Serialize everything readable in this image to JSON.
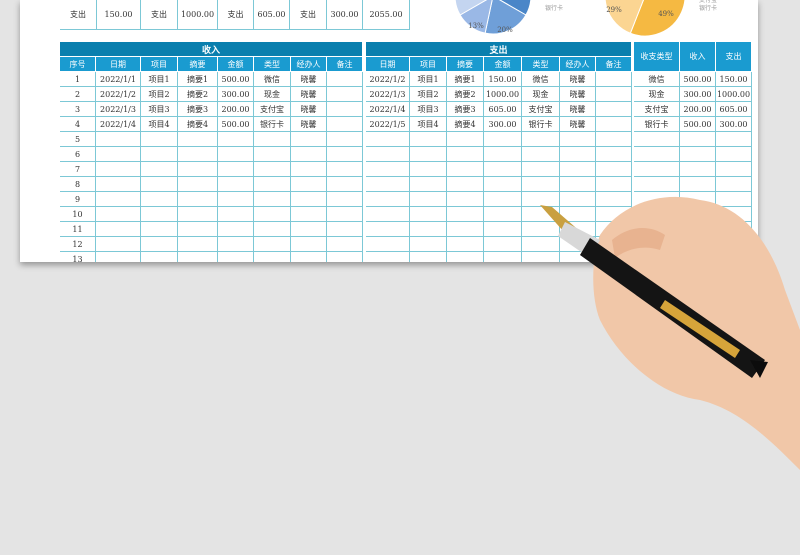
{
  "summary_row": [
    "支出",
    "150.00",
    "支出",
    "1000.00",
    "支出",
    "605.00",
    "支出",
    "300.00",
    "2055.00"
  ],
  "charts": {
    "income_pie": {
      "legend_visible": "银行卡",
      "labels_visible": [
        "13%",
        "20%"
      ],
      "colors": [
        "#4a86c8",
        "#6f9fd8",
        "#9ab8e6",
        "#c4d5f0"
      ]
    },
    "expense_pie": {
      "legend_visible": [
        "支付宝",
        "银行卡"
      ],
      "labels_visible": [
        "29%",
        "49%"
      ],
      "colors": [
        "#f0c060",
        "#f5b942",
        "#fbd592",
        "#fde3b8"
      ]
    }
  },
  "income": {
    "title": "收入",
    "headers": [
      "序号",
      "日期",
      "项目",
      "摘要",
      "金额",
      "类型",
      "经办人",
      "备注"
    ],
    "rows": [
      [
        "1",
        "2022/1/1",
        "项目1",
        "摘要1",
        "500.00",
        "微信",
        "晓馨",
        ""
      ],
      [
        "2",
        "2022/1/2",
        "项目2",
        "摘要2",
        "300.00",
        "现金",
        "晓馨",
        ""
      ],
      [
        "3",
        "2022/1/3",
        "项目3",
        "摘要3",
        "200.00",
        "支付宝",
        "晓馨",
        ""
      ],
      [
        "4",
        "2022/1/4",
        "项目4",
        "摘要4",
        "500.00",
        "银行卡",
        "晓馨",
        ""
      ]
    ],
    "row_numbers": [
      "5",
      "6",
      "7",
      "8",
      "9",
      "10",
      "11",
      "12",
      "13"
    ]
  },
  "expense": {
    "title": "支出",
    "headers": [
      "日期",
      "项目",
      "摘要",
      "金额",
      "类型",
      "经办人",
      "备注"
    ],
    "rows": [
      [
        "2022/1/2",
        "项目1",
        "摘要1",
        "150.00",
        "微信",
        "晓馨",
        ""
      ],
      [
        "2022/1/3",
        "项目2",
        "摘要2",
        "1000.00",
        "现金",
        "晓馨",
        ""
      ],
      [
        "2022/1/4",
        "项目3",
        "摘要3",
        "605.00",
        "支付宝",
        "晓馨",
        ""
      ],
      [
        "2022/1/5",
        "项目4",
        "摘要4",
        "300.00",
        "银行卡",
        "晓馨",
        ""
      ]
    ]
  },
  "type_summary": {
    "headers": [
      "收支类型",
      "收入",
      "支出"
    ],
    "rows": [
      [
        "微信",
        "500.00",
        "150.00"
      ],
      [
        "现金",
        "300.00",
        "1000.00"
      ],
      [
        "支付宝",
        "200.00",
        "605.00"
      ],
      [
        "银行卡",
        "500.00",
        "300.00"
      ]
    ]
  }
}
